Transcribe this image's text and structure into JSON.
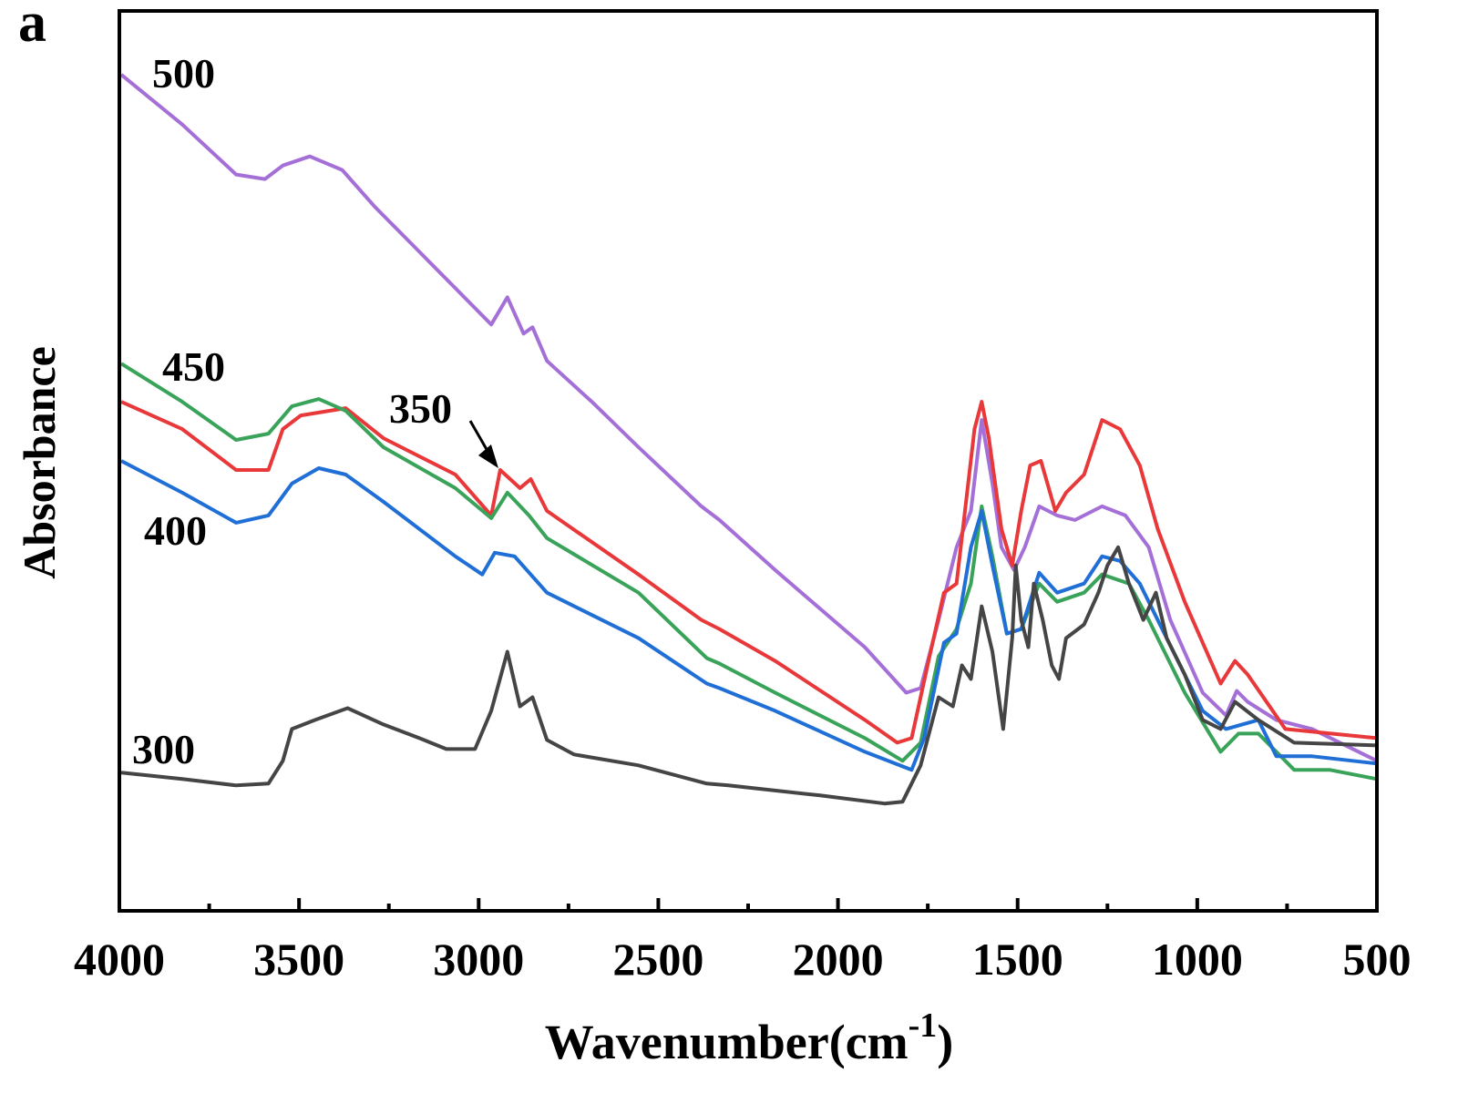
{
  "panel_label": "a",
  "chart_data": {
    "type": "line",
    "xlabel": "Wavenumber(cm",
    "xlabel_sup": "-1",
    "xlabel_close": ")",
    "ylabel": "Absorbance",
    "xlim": [
      4000,
      500
    ],
    "x_reversed": true,
    "ylim": [
      0,
      0.99
    ],
    "y_ticks_shown": false,
    "grid": false,
    "x_ticks": [
      4000,
      3500,
      3000,
      2500,
      2000,
      1500,
      1000,
      500
    ],
    "x_minor_ticks": [
      3750,
      3250,
      2750,
      2250,
      1750,
      1250,
      750
    ],
    "annotation": {
      "text": "350",
      "arrow_to": [
        2940,
        0.485
      ]
    },
    "series": [
      {
        "name": "500",
        "color": "#a470d8",
        "points": [
          [
            3995,
            0.92
          ],
          [
            3825,
            0.865
          ],
          [
            3675,
            0.81
          ],
          [
            3595,
            0.805
          ],
          [
            3545,
            0.82
          ],
          [
            3470,
            0.83
          ],
          [
            3380,
            0.815
          ],
          [
            3290,
            0.775
          ],
          [
            3190,
            0.735
          ],
          [
            3065,
            0.685
          ],
          [
            2965,
            0.645
          ],
          [
            2920,
            0.675
          ],
          [
            2875,
            0.635
          ],
          [
            2850,
            0.642
          ],
          [
            2810,
            0.605
          ],
          [
            2685,
            0.56
          ],
          [
            2555,
            0.51
          ],
          [
            2380,
            0.445
          ],
          [
            2330,
            0.43
          ],
          [
            2175,
            0.375
          ],
          [
            1925,
            0.29
          ],
          [
            1810,
            0.24
          ],
          [
            1770,
            0.245
          ],
          [
            1720,
            0.32
          ],
          [
            1670,
            0.4
          ],
          [
            1630,
            0.44
          ],
          [
            1600,
            0.54
          ],
          [
            1570,
            0.47
          ],
          [
            1545,
            0.4
          ],
          [
            1510,
            0.375
          ],
          [
            1480,
            0.4
          ],
          [
            1440,
            0.445
          ],
          [
            1390,
            0.435
          ],
          [
            1340,
            0.43
          ],
          [
            1265,
            0.445
          ],
          [
            1200,
            0.435
          ],
          [
            1135,
            0.4
          ],
          [
            1075,
            0.32
          ],
          [
            985,
            0.24
          ],
          [
            920,
            0.215
          ],
          [
            890,
            0.242
          ],
          [
            860,
            0.23
          ],
          [
            780,
            0.21
          ],
          [
            680,
            0.2
          ],
          [
            500,
            0.165
          ]
        ]
      },
      {
        "name": "350",
        "color": "#e8383a",
        "points": [
          [
            3995,
            0.56
          ],
          [
            3825,
            0.53
          ],
          [
            3675,
            0.485
          ],
          [
            3585,
            0.485
          ],
          [
            3545,
            0.53
          ],
          [
            3495,
            0.545
          ],
          [
            3370,
            0.553
          ],
          [
            3265,
            0.52
          ],
          [
            3065,
            0.48
          ],
          [
            2965,
            0.435
          ],
          [
            2940,
            0.485
          ],
          [
            2885,
            0.465
          ],
          [
            2855,
            0.475
          ],
          [
            2810,
            0.44
          ],
          [
            2555,
            0.37
          ],
          [
            2380,
            0.32
          ],
          [
            2330,
            0.31
          ],
          [
            2175,
            0.275
          ],
          [
            1925,
            0.21
          ],
          [
            1835,
            0.185
          ],
          [
            1795,
            0.19
          ],
          [
            1745,
            0.28
          ],
          [
            1705,
            0.35
          ],
          [
            1670,
            0.36
          ],
          [
            1620,
            0.53
          ],
          [
            1600,
            0.56
          ],
          [
            1580,
            0.52
          ],
          [
            1545,
            0.42
          ],
          [
            1515,
            0.38
          ],
          [
            1490,
            0.44
          ],
          [
            1465,
            0.49
          ],
          [
            1435,
            0.495
          ],
          [
            1395,
            0.44
          ],
          [
            1365,
            0.46
          ],
          [
            1315,
            0.48
          ],
          [
            1265,
            0.54
          ],
          [
            1215,
            0.53
          ],
          [
            1160,
            0.49
          ],
          [
            1110,
            0.42
          ],
          [
            1035,
            0.34
          ],
          [
            935,
            0.25
          ],
          [
            895,
            0.275
          ],
          [
            860,
            0.26
          ],
          [
            755,
            0.2
          ],
          [
            500,
            0.19
          ]
        ]
      },
      {
        "name": "450",
        "color": "#3aa35a",
        "points": [
          [
            3995,
            0.602
          ],
          [
            3825,
            0.56
          ],
          [
            3675,
            0.518
          ],
          [
            3585,
            0.525
          ],
          [
            3520,
            0.555
          ],
          [
            3445,
            0.563
          ],
          [
            3370,
            0.55
          ],
          [
            3265,
            0.51
          ],
          [
            3065,
            0.465
          ],
          [
            2965,
            0.432
          ],
          [
            2920,
            0.46
          ],
          [
            2860,
            0.435
          ],
          [
            2810,
            0.41
          ],
          [
            2555,
            0.35
          ],
          [
            2365,
            0.278
          ],
          [
            2330,
            0.272
          ],
          [
            2175,
            0.24
          ],
          [
            1925,
            0.19
          ],
          [
            1820,
            0.165
          ],
          [
            1770,
            0.185
          ],
          [
            1720,
            0.28
          ],
          [
            1670,
            0.31
          ],
          [
            1630,
            0.36
          ],
          [
            1600,
            0.445
          ],
          [
            1570,
            0.39
          ],
          [
            1530,
            0.305
          ],
          [
            1490,
            0.31
          ],
          [
            1440,
            0.36
          ],
          [
            1390,
            0.34
          ],
          [
            1315,
            0.35
          ],
          [
            1265,
            0.37
          ],
          [
            1190,
            0.36
          ],
          [
            1135,
            0.32
          ],
          [
            1035,
            0.24
          ],
          [
            935,
            0.175
          ],
          [
            885,
            0.195
          ],
          [
            830,
            0.195
          ],
          [
            730,
            0.155
          ],
          [
            630,
            0.155
          ],
          [
            500,
            0.145
          ]
        ]
      },
      {
        "name": "400",
        "color": "#1f6fd6",
        "points": [
          [
            3995,
            0.495
          ],
          [
            3825,
            0.46
          ],
          [
            3675,
            0.427
          ],
          [
            3585,
            0.435
          ],
          [
            3520,
            0.47
          ],
          [
            3445,
            0.487
          ],
          [
            3370,
            0.48
          ],
          [
            3265,
            0.45
          ],
          [
            3065,
            0.39
          ],
          [
            2990,
            0.37
          ],
          [
            2955,
            0.394
          ],
          [
            2900,
            0.39
          ],
          [
            2810,
            0.35
          ],
          [
            2555,
            0.3
          ],
          [
            2365,
            0.25
          ],
          [
            2330,
            0.245
          ],
          [
            2175,
            0.22
          ],
          [
            1925,
            0.175
          ],
          [
            1795,
            0.155
          ],
          [
            1760,
            0.19
          ],
          [
            1705,
            0.295
          ],
          [
            1670,
            0.305
          ],
          [
            1630,
            0.4
          ],
          [
            1600,
            0.44
          ],
          [
            1570,
            0.38
          ],
          [
            1530,
            0.305
          ],
          [
            1490,
            0.31
          ],
          [
            1440,
            0.372
          ],
          [
            1390,
            0.35
          ],
          [
            1315,
            0.36
          ],
          [
            1265,
            0.39
          ],
          [
            1215,
            0.385
          ],
          [
            1160,
            0.36
          ],
          [
            1085,
            0.3
          ],
          [
            985,
            0.22
          ],
          [
            920,
            0.2
          ],
          [
            830,
            0.21
          ],
          [
            780,
            0.17
          ],
          [
            680,
            0.17
          ],
          [
            500,
            0.162
          ]
        ]
      },
      {
        "name": "300",
        "color": "#454545",
        "points": [
          [
            3995,
            0.152
          ],
          [
            3825,
            0.145
          ],
          [
            3675,
            0.138
          ],
          [
            3585,
            0.14
          ],
          [
            3545,
            0.165
          ],
          [
            3520,
            0.2
          ],
          [
            3455,
            0.21
          ],
          [
            3365,
            0.223
          ],
          [
            3265,
            0.205
          ],
          [
            3165,
            0.19
          ],
          [
            3090,
            0.178
          ],
          [
            3010,
            0.178
          ],
          [
            2965,
            0.22
          ],
          [
            2920,
            0.285
          ],
          [
            2885,
            0.225
          ],
          [
            2850,
            0.235
          ],
          [
            2810,
            0.188
          ],
          [
            2735,
            0.172
          ],
          [
            2555,
            0.16
          ],
          [
            2365,
            0.14
          ],
          [
            2305,
            0.138
          ],
          [
            2050,
            0.127
          ],
          [
            1870,
            0.118
          ],
          [
            1820,
            0.12
          ],
          [
            1770,
            0.16
          ],
          [
            1720,
            0.235
          ],
          [
            1680,
            0.225
          ],
          [
            1655,
            0.27
          ],
          [
            1630,
            0.255
          ],
          [
            1600,
            0.335
          ],
          [
            1570,
            0.285
          ],
          [
            1540,
            0.2
          ],
          [
            1515,
            0.3
          ],
          [
            1505,
            0.38
          ],
          [
            1490,
            0.32
          ],
          [
            1470,
            0.29
          ],
          [
            1455,
            0.36
          ],
          [
            1430,
            0.32
          ],
          [
            1405,
            0.27
          ],
          [
            1385,
            0.255
          ],
          [
            1365,
            0.3
          ],
          [
            1315,
            0.315
          ],
          [
            1275,
            0.35
          ],
          [
            1250,
            0.38
          ],
          [
            1220,
            0.4
          ],
          [
            1190,
            0.36
          ],
          [
            1150,
            0.32
          ],
          [
            1115,
            0.35
          ],
          [
            1085,
            0.3
          ],
          [
            1035,
            0.26
          ],
          [
            985,
            0.21
          ],
          [
            935,
            0.2
          ],
          [
            895,
            0.23
          ],
          [
            830,
            0.21
          ],
          [
            730,
            0.185
          ],
          [
            500,
            0.182
          ]
        ]
      }
    ]
  }
}
